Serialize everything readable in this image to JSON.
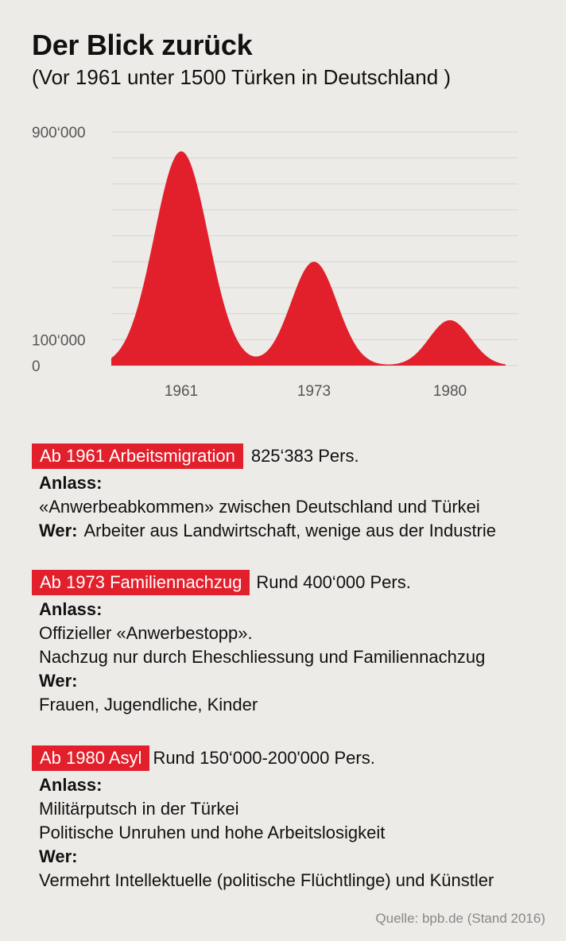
{
  "title": "Der Blick zurück",
  "subtitle": "(Vor 1961 unter 1500 Türken in Deutschland )",
  "chart_data": {
    "type": "area",
    "y_ticks": [
      {
        "value": 900000,
        "label": "900‘000"
      },
      {
        "value": 100000,
        "label": "100‘000"
      },
      {
        "value": 0,
        "label": "0"
      }
    ],
    "x_ticks": [
      {
        "value": 1961,
        "label": "1961"
      },
      {
        "value": 1973,
        "label": "1973"
      },
      {
        "value": 1980,
        "label": "1980"
      }
    ],
    "ylim": [
      0,
      900000
    ],
    "grid": true,
    "peaks": [
      {
        "x": 1961,
        "y": 825383
      },
      {
        "x": 1973,
        "y": 400000
      },
      {
        "x": 1980,
        "y": 175000
      }
    ],
    "colors": {
      "fill": "#e2202c",
      "grid": "#d8d6d1"
    }
  },
  "blocks": [
    {
      "tag": "Ab 1961 Arbeitsmigration",
      "count": "825‘383 Pers.",
      "anlass_label": "Anlass:",
      "anlass": [
        "«Anwerbeabkommen» zwischen Deutschland und Türkei"
      ],
      "wer_label": "Wer:",
      "wer_inline": true,
      "wer": [
        "Arbeiter aus Landwirtschaft, wenige aus der Industrie"
      ]
    },
    {
      "tag": "Ab 1973 Familiennachzug",
      "count": "Rund 400‘000 Pers.",
      "anlass_label": "Anlass:",
      "anlass": [
        "Offizieller «Anwerbestopp».",
        "Nachzug nur durch Eheschliessung und Familiennachzug"
      ],
      "wer_label": "Wer:",
      "wer_inline": false,
      "wer": [
        "Frauen, Jugendliche, Kinder"
      ]
    },
    {
      "tag": "Ab 1980 Asyl",
      "count": "Rund 150‘000-200'000 Pers.",
      "anlass_label": "Anlass:",
      "anlass": [
        "Militärputsch in der Türkei",
        "Politische Unruhen und hohe Arbeitslosigkeit"
      ],
      "wer_label": "Wer:",
      "wer_inline": false,
      "wer": [
        "Vermehrt Intellektuelle (politische Flüchtlinge) und Künstler"
      ]
    }
  ],
  "source": "Quelle: bpb.de (Stand 2016)",
  "colors": {
    "accent": "#e2202c",
    "background": "#ecebe7",
    "muted": "#888888"
  }
}
